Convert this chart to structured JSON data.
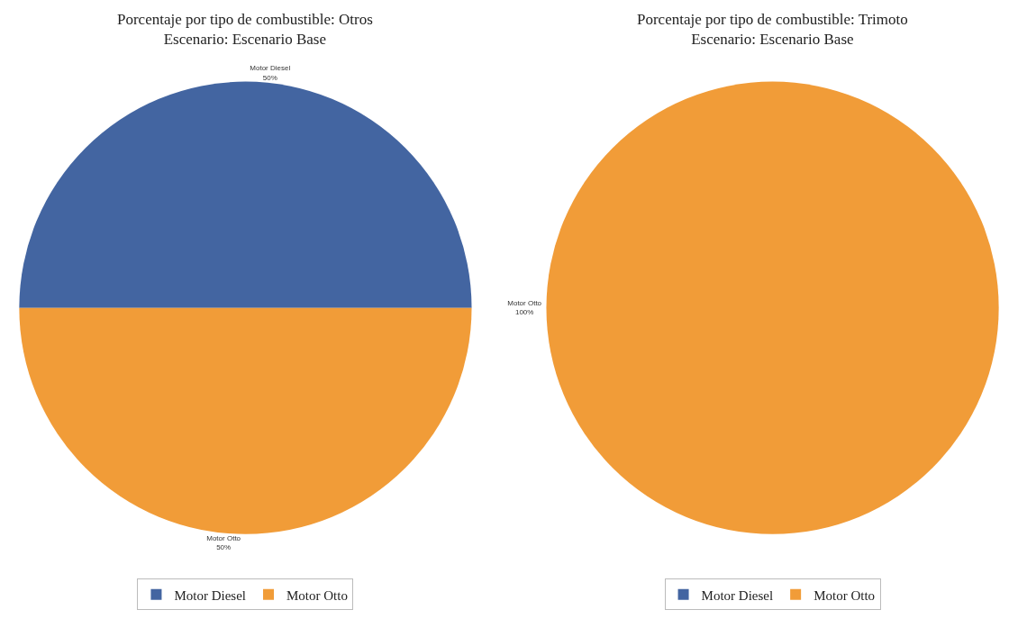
{
  "chart_data": [
    {
      "type": "pie",
      "title": "Porcentaje por tipo de combustible: Otros",
      "subtitle": "Escenario: Escenario Base",
      "categories": [
        "Motor Diesel",
        "Motor Otto"
      ],
      "values": [
        50,
        50
      ],
      "colors": [
        "#4365a1",
        "#f19c38"
      ],
      "value_labels": [
        "50%",
        "50%"
      ],
      "legend": "bottom"
    },
    {
      "type": "pie",
      "title": "Porcentaje por tipo de combustible: Trimoto",
      "subtitle": "Escenario: Escenario Base",
      "categories": [
        "Motor Diesel",
        "Motor Otto"
      ],
      "values": [
        0,
        100
      ],
      "colors": [
        "#4365a1",
        "#f19c38"
      ],
      "value_labels": [
        null,
        "100%"
      ],
      "legend": "bottom"
    }
  ]
}
